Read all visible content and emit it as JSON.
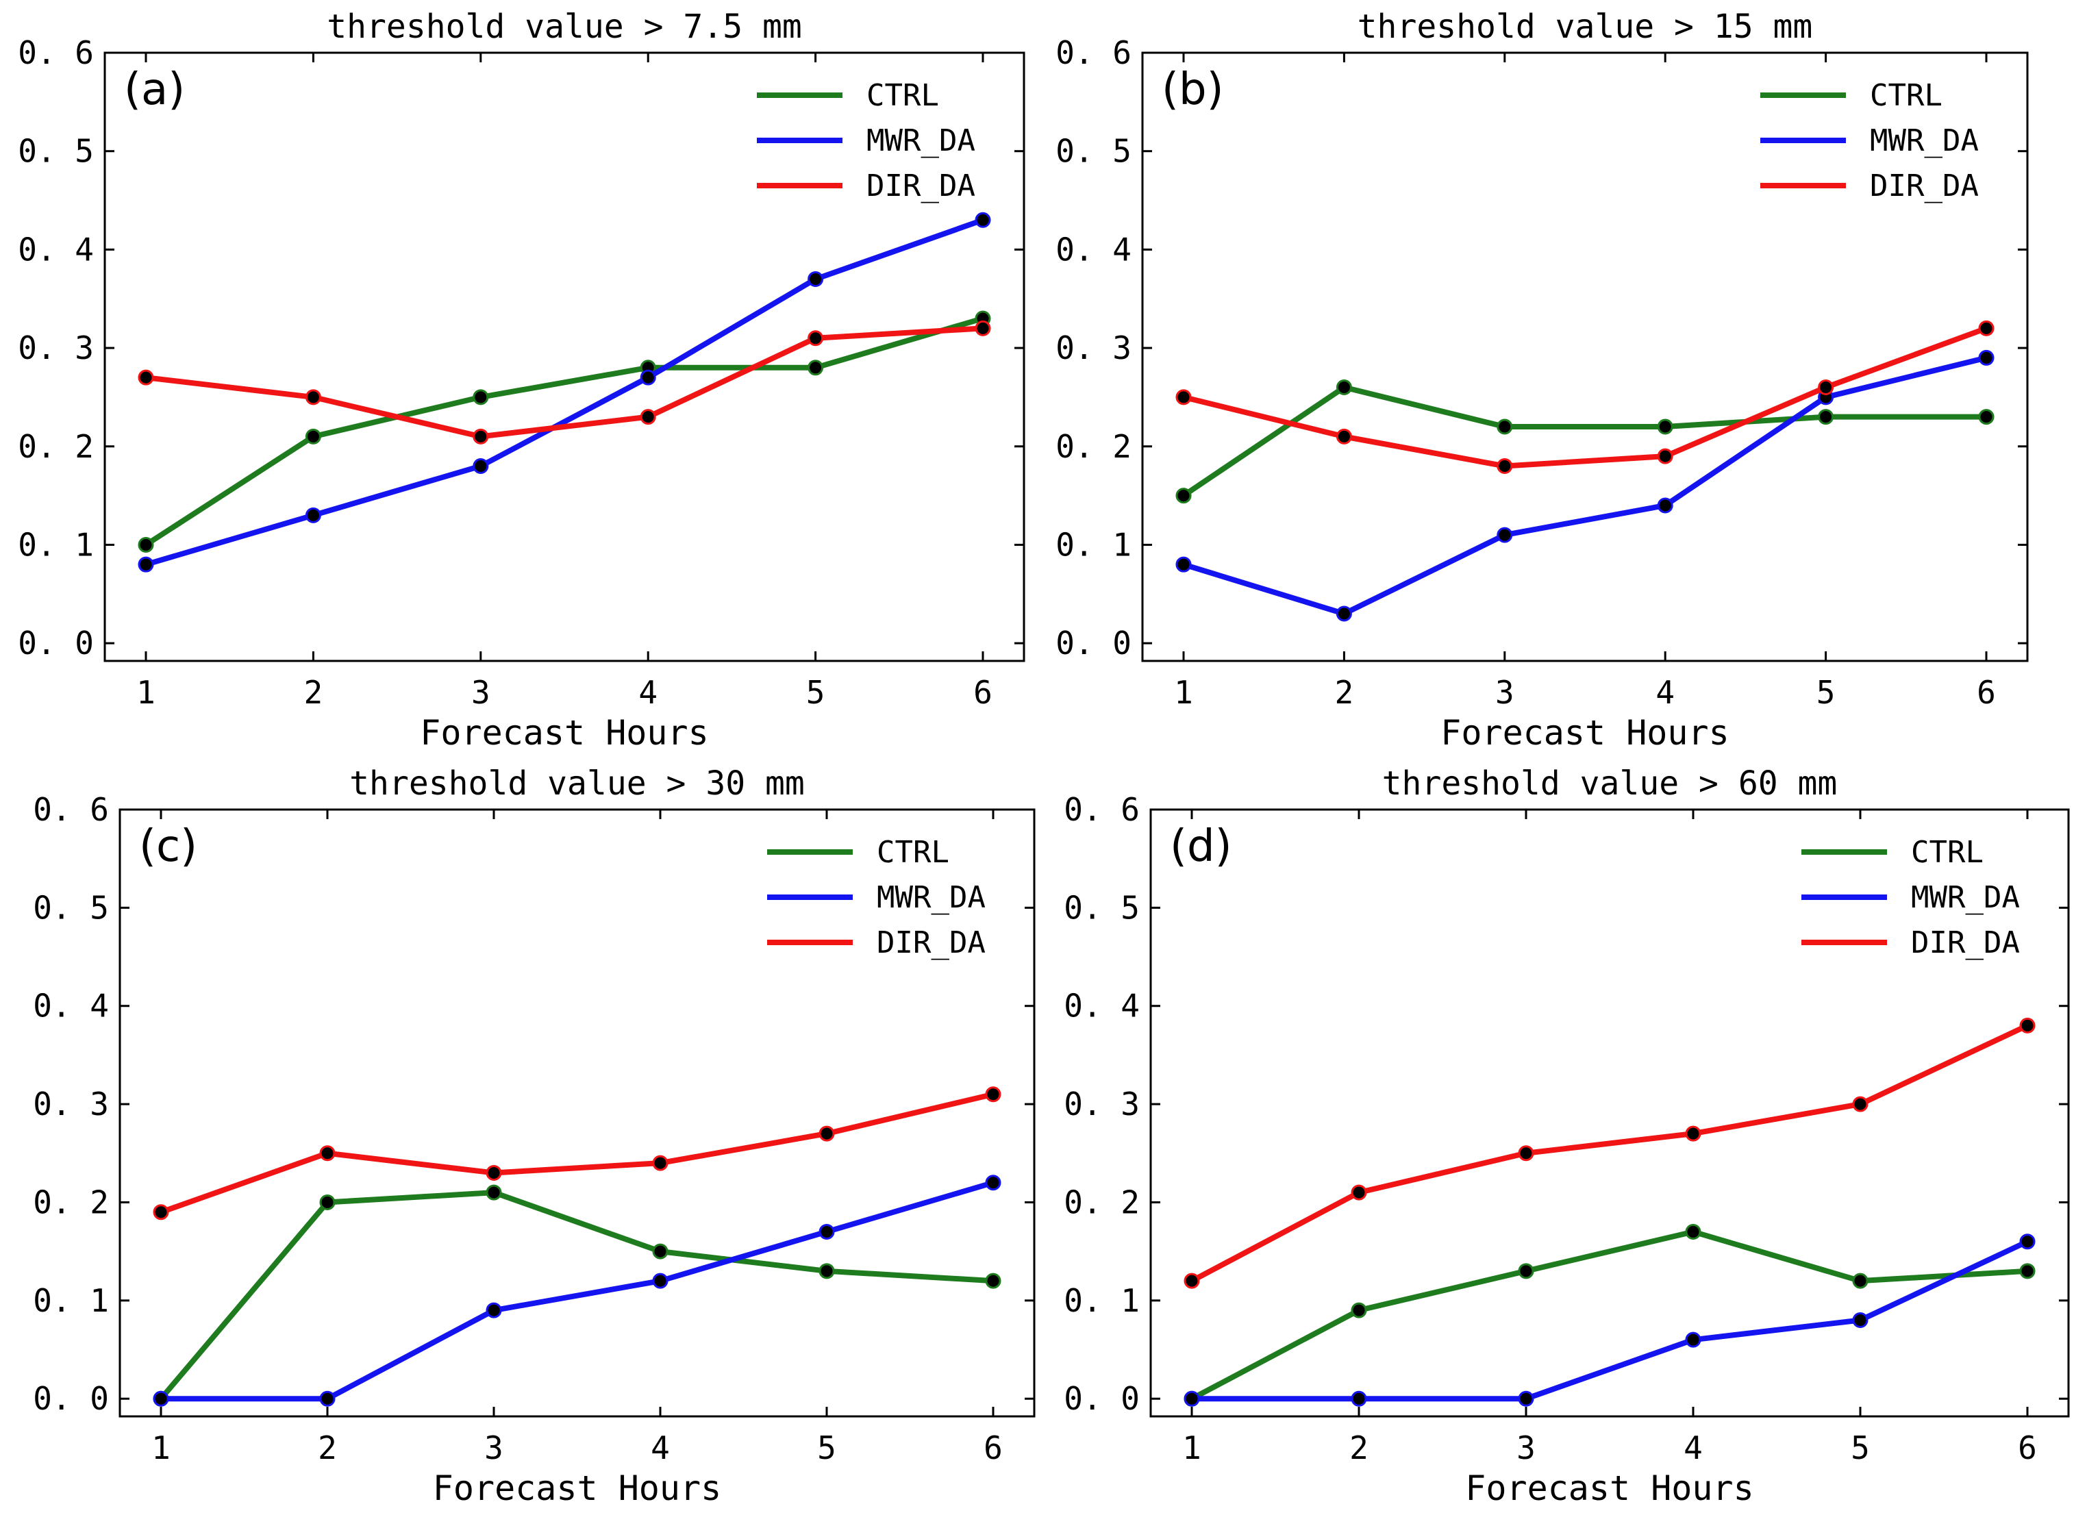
{
  "colors": {
    "CTRL": "#1e7b1e",
    "MWR_DA": "#1414f0",
    "DIR_DA": "#f01414",
    "marker": "#000000"
  },
  "chart_data": [
    {
      "type": "line",
      "panel": "(a)",
      "title": "threshold value > 7.5 mm",
      "xlabel": "Forecast Hours",
      "ylabel": "",
      "x": [
        1,
        2,
        3,
        4,
        5,
        6
      ],
      "x_ticks": [
        "1",
        "2",
        "3",
        "4",
        "5",
        "6"
      ],
      "y_ticks": [
        "0.0",
        "0.1",
        "0.2",
        "0.3",
        "0.4",
        "0.5",
        "0.6"
      ],
      "ylim": [
        0,
        0.6
      ],
      "legend": "top-right",
      "series": [
        {
          "name": "CTRL",
          "values": [
            0.1,
            0.21,
            0.25,
            0.28,
            0.28,
            0.33
          ]
        },
        {
          "name": "MWR_DA",
          "values": [
            0.08,
            0.13,
            0.18,
            0.27,
            0.37,
            0.43
          ]
        },
        {
          "name": "DIR_DA",
          "values": [
            0.27,
            0.25,
            0.21,
            0.23,
            0.31,
            0.32
          ]
        }
      ]
    },
    {
      "type": "line",
      "panel": "(b)",
      "title": "threshold value > 15 mm",
      "xlabel": "Forecast Hours",
      "ylabel": "",
      "x": [
        1,
        2,
        3,
        4,
        5,
        6
      ],
      "x_ticks": [
        "1",
        "2",
        "3",
        "4",
        "5",
        "6"
      ],
      "y_ticks": [
        "0.0",
        "0.1",
        "0.2",
        "0.3",
        "0.4",
        "0.5",
        "0.6"
      ],
      "ylim": [
        0,
        0.6
      ],
      "legend": "top-right",
      "series": [
        {
          "name": "CTRL",
          "values": [
            0.15,
            0.26,
            0.22,
            0.22,
            0.23,
            0.23
          ]
        },
        {
          "name": "MWR_DA",
          "values": [
            0.08,
            0.03,
            0.11,
            0.14,
            0.25,
            0.29
          ]
        },
        {
          "name": "DIR_DA",
          "values": [
            0.25,
            0.21,
            0.18,
            0.19,
            0.26,
            0.32
          ]
        }
      ]
    },
    {
      "type": "line",
      "panel": "(c)",
      "title": "threshold value > 30 mm",
      "xlabel": "Forecast Hours",
      "ylabel": "",
      "x": [
        1,
        2,
        3,
        4,
        5,
        6
      ],
      "x_ticks": [
        "1",
        "2",
        "3",
        "4",
        "5",
        "6"
      ],
      "y_ticks": [
        "0.0",
        "0.1",
        "0.2",
        "0.3",
        "0.4",
        "0.5",
        "0.6"
      ],
      "ylim": [
        0,
        0.6
      ],
      "legend": "top-right",
      "series": [
        {
          "name": "CTRL",
          "values": [
            0.0,
            0.2,
            0.21,
            0.15,
            0.13,
            0.12
          ]
        },
        {
          "name": "MWR_DA",
          "values": [
            0.0,
            0.0,
            0.09,
            0.12,
            0.17,
            0.22
          ]
        },
        {
          "name": "DIR_DA",
          "values": [
            0.19,
            0.25,
            0.23,
            0.24,
            0.27,
            0.31
          ]
        }
      ]
    },
    {
      "type": "line",
      "panel": "(d)",
      "title": "threshold value > 60 mm",
      "xlabel": "Forecast Hours",
      "ylabel": "",
      "x": [
        1,
        2,
        3,
        4,
        5,
        6
      ],
      "x_ticks": [
        "1",
        "2",
        "3",
        "4",
        "5",
        "6"
      ],
      "y_ticks": [
        "0.0",
        "0.1",
        "0.2",
        "0.3",
        "0.4",
        "0.5",
        "0.6"
      ],
      "ylim": [
        0,
        0.6
      ],
      "legend": "top-right",
      "series": [
        {
          "name": "CTRL",
          "values": [
            0.0,
            0.09,
            0.13,
            0.17,
            0.12,
            0.13
          ]
        },
        {
          "name": "MWR_DA",
          "values": [
            0.0,
            0.0,
            0.0,
            0.06,
            0.08,
            0.16
          ]
        },
        {
          "name": "DIR_DA",
          "values": [
            0.12,
            0.21,
            0.25,
            0.27,
            0.3,
            0.38
          ]
        }
      ]
    }
  ]
}
